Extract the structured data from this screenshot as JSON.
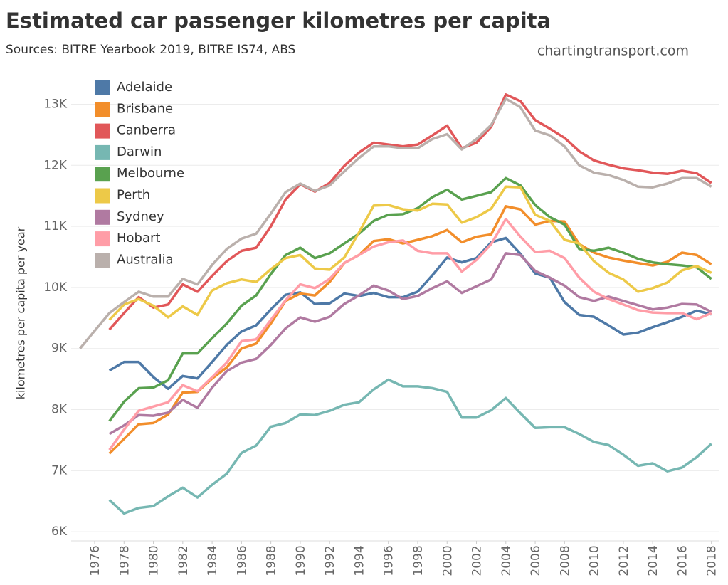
{
  "chart_data": {
    "type": "line",
    "title": "Estimated car passenger kilometres per capita",
    "subtitle": "Sources: BITRE Yearbook 2019, BITRE IS74, ABS",
    "credit": "chartingtransport.com",
    "y_label": "kilometres per capita per year",
    "x": [
      1975,
      1976,
      1977,
      1978,
      1979,
      1980,
      1981,
      1982,
      1983,
      1984,
      1985,
      1986,
      1987,
      1988,
      1989,
      1990,
      1991,
      1992,
      1993,
      1994,
      1995,
      1996,
      1997,
      1998,
      1999,
      2000,
      2001,
      2002,
      2003,
      2004,
      2005,
      2006,
      2007,
      2008,
      2009,
      2010,
      2011,
      2012,
      2013,
      2014,
      2015,
      2016,
      2017,
      2018
    ],
    "xlim": [
      1974.4,
      2018.5
    ],
    "xticks": [
      1976,
      1978,
      1980,
      1982,
      1984,
      1986,
      1988,
      1990,
      1992,
      1994,
      1996,
      1998,
      2000,
      2002,
      2004,
      2006,
      2008,
      2010,
      2012,
      2014,
      2016,
      2018
    ],
    "ylim": [
      5850,
      13600
    ],
    "yticks": [
      {
        "value": 6000,
        "label": "6K"
      },
      {
        "value": 7000,
        "label": "7K"
      },
      {
        "value": 8000,
        "label": "8K"
      },
      {
        "value": 9000,
        "label": "9K"
      },
      {
        "value": 10000,
        "label": "10K"
      },
      {
        "value": 11000,
        "label": "11K"
      },
      {
        "value": 12000,
        "label": "12K"
      },
      {
        "value": 13000,
        "label": "13K"
      }
    ],
    "grid": true,
    "legend": "top-left",
    "series": [
      {
        "name": "Adelaide",
        "color": "#4e79a7",
        "values": [
          null,
          null,
          8640,
          8780,
          8780,
          8530,
          8340,
          8550,
          8510,
          8780,
          9060,
          9280,
          9380,
          9640,
          9880,
          9920,
          9730,
          9740,
          9900,
          9860,
          9910,
          9840,
          9840,
          9930,
          10200,
          10490,
          10410,
          10480,
          10740,
          10810,
          10550,
          10230,
          10160,
          9760,
          9550,
          9520,
          9380,
          9230,
          9260,
          9350,
          9430,
          9520,
          9620,
          9560
        ]
      },
      {
        "name": "Brisbane",
        "color": "#f28e2b",
        "values": [
          null,
          null,
          7280,
          7520,
          7760,
          7780,
          7920,
          8280,
          8290,
          8510,
          8690,
          9000,
          9080,
          9410,
          9780,
          9900,
          9870,
          10090,
          10400,
          10530,
          10760,
          10790,
          10720,
          10780,
          10840,
          10940,
          10740,
          10830,
          10870,
          11330,
          11280,
          11030,
          11090,
          11080,
          10710,
          10570,
          10490,
          10440,
          10400,
          10360,
          10420,
          10570,
          10530,
          10380
        ]
      },
      {
        "name": "Canberra",
        "color": "#e15759",
        "values": [
          null,
          null,
          9310,
          9580,
          9840,
          9670,
          9720,
          10050,
          9930,
          10190,
          10430,
          10600,
          10650,
          11000,
          11440,
          11690,
          11570,
          11710,
          11990,
          12210,
          12370,
          12340,
          12310,
          12340,
          12490,
          12650,
          12280,
          12370,
          12630,
          13160,
          13050,
          12740,
          12600,
          12450,
          12230,
          12080,
          12010,
          11950,
          11920,
          11880,
          11860,
          11910,
          11870,
          11710
        ]
      },
      {
        "name": "Darwin",
        "color": "#76b7b2",
        "values": [
          null,
          null,
          6520,
          6300,
          6390,
          6420,
          6580,
          6720,
          6560,
          6770,
          6950,
          7290,
          7410,
          7720,
          7780,
          7920,
          7910,
          7980,
          8080,
          8120,
          8330,
          8490,
          8380,
          8380,
          8350,
          8290,
          7870,
          7870,
          7990,
          8190,
          7940,
          7700,
          7710,
          7710,
          7600,
          7470,
          7420,
          7260,
          7080,
          7120,
          6990,
          7050,
          7220,
          7440
        ]
      },
      {
        "name": "Melbourne",
        "color": "#59a14f",
        "values": [
          null,
          null,
          7810,
          8130,
          8350,
          8360,
          8480,
          8920,
          8920,
          9170,
          9410,
          9700,
          9870,
          10220,
          10530,
          10650,
          10480,
          10560,
          10720,
          10880,
          11090,
          11190,
          11200,
          11300,
          11480,
          11600,
          11440,
          11500,
          11560,
          11790,
          11670,
          11350,
          11150,
          11030,
          10630,
          10600,
          10650,
          10570,
          10470,
          10410,
          10380,
          10360,
          10330,
          10140
        ]
      },
      {
        "name": "Perth",
        "color": "#edc948",
        "values": [
          null,
          null,
          9470,
          9720,
          9810,
          9700,
          9510,
          9690,
          9550,
          9950,
          10070,
          10130,
          10090,
          10300,
          10480,
          10530,
          10310,
          10290,
          10490,
          10900,
          11340,
          11350,
          11280,
          11260,
          11370,
          11360,
          11060,
          11150,
          11290,
          11650,
          11640,
          11190,
          11090,
          10780,
          10720,
          10430,
          10240,
          10130,
          9930,
          9990,
          10080,
          10280,
          10350,
          10240
        ]
      },
      {
        "name": "Sydney",
        "color": "#b07aa1",
        "values": [
          null,
          null,
          7600,
          7740,
          7910,
          7900,
          7950,
          8160,
          8030,
          8360,
          8630,
          8770,
          8830,
          9060,
          9330,
          9510,
          9440,
          9520,
          9730,
          9870,
          10030,
          9950,
          9810,
          9860,
          9990,
          10100,
          9910,
          10020,
          10130,
          10560,
          10530,
          10270,
          10160,
          10030,
          9840,
          9780,
          9850,
          9780,
          9710,
          9640,
          9670,
          9730,
          9720,
          9600
        ]
      },
      {
        "name": "Hobart",
        "color": "#ff9da7",
        "values": [
          null,
          null,
          7340,
          7670,
          7980,
          8050,
          8120,
          8400,
          8300,
          8530,
          8770,
          9120,
          9150,
          9470,
          9790,
          10050,
          9990,
          10140,
          10400,
          10530,
          10670,
          10740,
          10770,
          10600,
          10560,
          10560,
          10260,
          10450,
          10710,
          11120,
          10830,
          10580,
          10600,
          10480,
          10160,
          9930,
          9810,
          9720,
          9630,
          9590,
          9580,
          9580,
          9480,
          9580
        ]
      },
      {
        "name": "Australia",
        "color": "#bab0ac",
        "values": [
          9000,
          9290,
          9580,
          9760,
          9930,
          9850,
          9850,
          10140,
          10050,
          10370,
          10630,
          10800,
          10880,
          11210,
          11560,
          11700,
          11580,
          11670,
          11900,
          12120,
          12310,
          12310,
          12280,
          12280,
          12430,
          12510,
          12260,
          12430,
          12660,
          13090,
          12950,
          12570,
          12490,
          12310,
          12000,
          11880,
          11840,
          11760,
          11650,
          11640,
          11700,
          11790,
          11790,
          11650
        ]
      }
    ]
  }
}
